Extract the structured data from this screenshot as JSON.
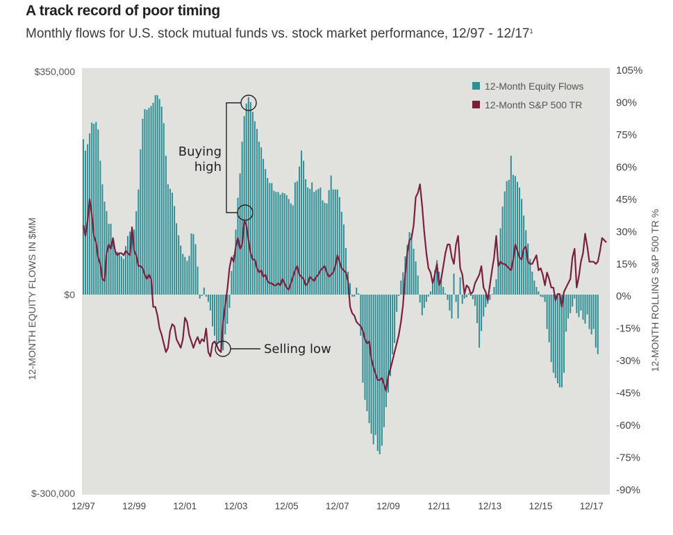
{
  "title": "A track record of poor timing",
  "subtitle": "Monthly flows for U.S. stock mutual funds vs. stock market performance, 12/97 - 12/17",
  "subtitle_footnote": "1",
  "colors": {
    "background": "#e1e1dd",
    "flows": "#2e8f96",
    "sp500": "#7a1f3d",
    "annotation": "#222222"
  },
  "chart_data": {
    "type": "bar+line",
    "title": "A track record of poor timing",
    "subtitle": "Monthly flows for U.S. stock mutual funds vs. stock market performance, 12/97 - 12/17",
    "start": "12/97",
    "end": "12/17",
    "frequency": "monthly",
    "x_tick_labels": [
      "12/97",
      "12/99",
      "12/01",
      "12/03",
      "12/05",
      "12/07",
      "12/09",
      "12/11",
      "12/13",
      "12/15",
      "12/17"
    ],
    "left_axis": {
      "label": "12-MONTH EQUITY FLOWS IN $MM",
      "ticks": [
        {
          "value": 350000,
          "label": "$350,000"
        },
        {
          "value": 0,
          "label": "$0"
        },
        {
          "value": -300000,
          "label": "$-300,000"
        }
      ],
      "range": [
        -300000,
        350000
      ]
    },
    "right_axis": {
      "label": "12-MONTH ROLLING S&P  500 TR %",
      "ticks": [
        {
          "value": 105,
          "label": "105%"
        },
        {
          "value": 90,
          "label": "90%"
        },
        {
          "value": 75,
          "label": "75%"
        },
        {
          "value": 60,
          "label": "60%"
        },
        {
          "value": 45,
          "label": "45%"
        },
        {
          "value": 30,
          "label": "30%"
        },
        {
          "value": 15,
          "label": "15%"
        },
        {
          "value": 0,
          "label": "0%"
        },
        {
          "value": -15,
          "label": "-15%"
        },
        {
          "value": -30,
          "label": "-30%"
        },
        {
          "value": -45,
          "label": "-45%"
        },
        {
          "value": -60,
          "label": "-60%"
        },
        {
          "value": -75,
          "label": "-75%"
        },
        {
          "value": -90,
          "label": "-90%"
        }
      ],
      "range": [
        -90,
        105
      ]
    },
    "legend": {
      "position": "top-right",
      "entries": [
        "12-Month Equity Flows",
        "12-Month S&P 500 TR"
      ]
    },
    "series": [
      {
        "name": "12-Month Equity Flows",
        "type": "bar",
        "axis": "left",
        "unit": "$MM",
        "values": [
          244000,
          226000,
          236000,
          253000,
          270000,
          268000,
          271000,
          259000,
          210000,
          173000,
          146000,
          131000,
          111000,
          111000,
          82000,
          71000,
          67000,
          65000,
          60000,
          56000,
          76000,
          92000,
          99000,
          99000,
          102000,
          131000,
          165000,
          228000,
          276000,
          291000,
          290000,
          293000,
          296000,
          301000,
          313000,
          313000,
          307000,
          295000,
          269000,
          218000,
          173000,
          166000,
          160000,
          139000,
          112000,
          93000,
          77000,
          64000,
          59000,
          53000,
          61000,
          96000,
          95000,
          79000,
          44000,
          -6000,
          -2000,
          11000,
          -3000,
          -11000,
          -24000,
          -48000,
          -62000,
          -76000,
          -72000,
          -85000,
          -84000,
          -60000,
          -44000,
          -20000,
          37000,
          62000,
          102000,
          152000,
          190000,
          240000,
          280000,
          300000,
          310000,
          302000,
          287000,
          272000,
          260000,
          240000,
          231000,
          213000,
          197000,
          183000,
          175000,
          175000,
          163000,
          161000,
          161000,
          157000,
          160000,
          159000,
          156000,
          150000,
          143000,
          140000,
          176000,
          178000,
          201000,
          226000,
          210000,
          181000,
          168000,
          166000,
          176000,
          161000,
          164000,
          166000,
          168000,
          148000,
          144000,
          143000,
          164000,
          187000,
          165000,
          165000,
          165000,
          153000,
          130000,
          110000,
          73000,
          36000,
          18000,
          -3000,
          -3000,
          11000,
          2000,
          -62000,
          -133000,
          -159000,
          -176000,
          -194000,
          -210000,
          -226000,
          -212000,
          -236000,
          -241000,
          -228000,
          -200000,
          -170000,
          -148000,
          -123000,
          -90000,
          -73000,
          -26000,
          -2000,
          22000,
          35000,
          60000,
          78000,
          98000,
          96000,
          72000,
          52000,
          30000,
          -12000,
          -31000,
          -20000,
          -11000,
          -3000,
          5000,
          19000,
          38000,
          54000,
          36000,
          26000,
          12000,
          2000,
          -8000,
          -24000,
          -36000,
          33000,
          -11000,
          -36000,
          27000,
          -14000,
          -6000,
          -4000,
          2000,
          -2000,
          -7000,
          -17000,
          -43000,
          -80000,
          -55000,
          -33000,
          -19000,
          -14000,
          -8000,
          1000,
          12000,
          24000,
          55000,
          104000,
          138000,
          162000,
          178000,
          180000,
          218000,
          188000,
          186000,
          177000,
          168000,
          150000,
          124000,
          101000,
          80000,
          56000,
          36000,
          22000,
          12000,
          5000,
          -3000,
          -4000,
          -11000,
          -52000,
          -72000,
          -102000,
          -118000,
          -126000,
          -134000,
          -140000,
          -140000,
          -118000,
          -56000,
          -36000,
          -28000,
          -18000,
          -6000,
          -28000,
          -34000,
          -24000,
          -38000,
          -44000,
          -30000,
          -52000,
          -60000,
          -52000,
          -80000,
          -90000
        ]
      },
      {
        "name": "12-Month S&P 500 TR",
        "type": "line",
        "axis": "right",
        "unit": "%",
        "values": [
          33,
          28,
          35,
          45,
          38,
          28,
          25,
          18,
          15,
          8,
          7,
          20,
          24,
          22,
          27,
          21,
          19,
          20,
          20,
          19,
          21,
          20,
          19,
          32,
          21,
          19,
          14,
          14,
          13,
          10,
          8,
          10,
          8,
          -5,
          -5,
          -9,
          -15,
          -18,
          -22,
          -26,
          -24,
          -16,
          -13,
          -14,
          -20,
          -22,
          -24,
          -20,
          -10,
          -12,
          -18,
          -21,
          -24,
          -21,
          -19,
          -22,
          -20,
          -21,
          -15,
          -26,
          -28,
          -22,
          -21,
          -23,
          -25,
          -26,
          -12,
          -4,
          3,
          13,
          18,
          16,
          23,
          27,
          22,
          24,
          35,
          33,
          26,
          20,
          17,
          17,
          13,
          11,
          12,
          9,
          10,
          7,
          6,
          6,
          5,
          5,
          6,
          5,
          8,
          6,
          4,
          3,
          6,
          9,
          12,
          14,
          10,
          9,
          8,
          5,
          6,
          9,
          8,
          7,
          9,
          10,
          12,
          13,
          14,
          11,
          9,
          10,
          11,
          14,
          19,
          16,
          13,
          12,
          11,
          7,
          -5,
          -8,
          -9,
          -12,
          -13,
          -14,
          -16,
          -20,
          -22,
          -21,
          -29,
          -33,
          -36,
          -39,
          -39,
          -38,
          -41,
          -44,
          -37,
          -34,
          -30,
          -26,
          -22,
          -18,
          -12,
          -4,
          10,
          20,
          26,
          27,
          33,
          46,
          48,
          52,
          42,
          30,
          20,
          13,
          11,
          6,
          10,
          15,
          5,
          8,
          14,
          20,
          24,
          24,
          18,
          15,
          24,
          28,
          13,
          10,
          1,
          5,
          4,
          1,
          2,
          6,
          8,
          10,
          14,
          4,
          2,
          -2,
          5,
          12,
          18,
          28,
          14,
          16,
          15,
          15,
          14,
          13,
          12,
          17,
          24,
          21,
          18,
          17,
          22,
          23,
          16,
          15,
          15,
          17,
          19,
          12,
          13,
          10,
          5,
          11,
          8,
          4,
          4,
          -2,
          1,
          1,
          -5,
          2,
          4,
          6,
          8,
          18,
          22,
          4,
          9,
          16,
          20,
          29,
          23,
          16,
          16,
          16,
          15,
          16,
          21,
          27,
          26,
          25
        ]
      }
    ],
    "annotations": [
      {
        "text": "Buying high",
        "lines": [
          "Buying",
          "high"
        ],
        "refers_to": "03/04 peak in equity flows and S&P 500 TR"
      },
      {
        "text": "Selling low",
        "refers_to": "02/03 trough in equity flows and S&P 500 TR"
      }
    ]
  }
}
